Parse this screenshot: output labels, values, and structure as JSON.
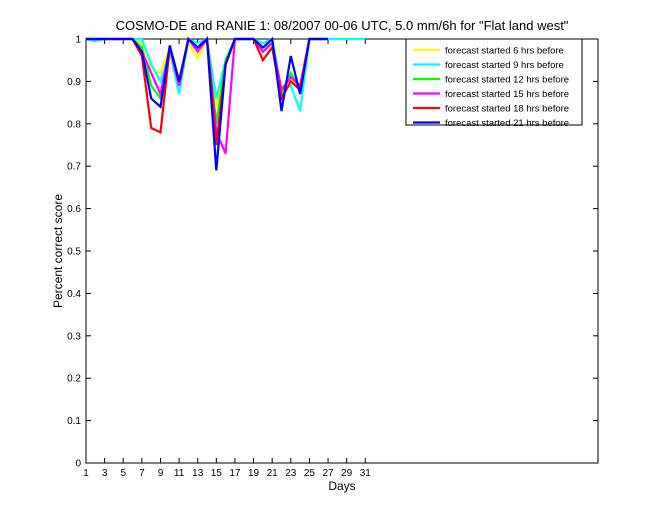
{
  "chart_data": {
    "type": "line",
    "title": "COSMO-DE and RANIE 1: 08/2007 00-06 UTC, 5.0 mm/6h for \"Flat land west\"",
    "xlabel": "Days",
    "ylabel": "Percent correct score",
    "xlim": [
      1,
      56
    ],
    "ylim": [
      0,
      1
    ],
    "xticks": [
      1,
      3,
      5,
      7,
      9,
      11,
      13,
      15,
      17,
      19,
      21,
      23,
      25,
      27,
      29,
      31
    ],
    "yticks": [
      0,
      0.1,
      0.2,
      0.3,
      0.4,
      0.5,
      0.6,
      0.7,
      0.8,
      0.9,
      1
    ],
    "ytick_labels": [
      "0",
      "0.1",
      "0.2",
      "0.3",
      "0.4",
      "0.5",
      "0.6",
      "0.7",
      "0.8",
      "0.9",
      "1"
    ],
    "legend_position": "top-right",
    "grid": false,
    "x": [
      1,
      2,
      3,
      4,
      5,
      6,
      7,
      8,
      9,
      10,
      11,
      12,
      13,
      14,
      15,
      16,
      17,
      18,
      19,
      20,
      21,
      22,
      23,
      24,
      25,
      26,
      27,
      28,
      29,
      30,
      31
    ],
    "series": [
      {
        "name": "forecast started 6 hrs before",
        "color": "#ffff00",
        "values": [
          1,
          1,
          1,
          1,
          1,
          1,
          0.99,
          0.93,
          0.92,
          0.98,
          0.91,
          0.99,
          0.955,
          1,
          0.84,
          0.94,
          1,
          1,
          1,
          0.98,
          0.99,
          0.87,
          0.91,
          0.88,
          1,
          1,
          1,
          null,
          null,
          null,
          null
        ]
      },
      {
        "name": "forecast started 9 hrs before",
        "color": "#00ffff",
        "values": [
          1,
          0.995,
          1,
          1,
          1,
          1,
          1,
          0.94,
          0.9,
          0.97,
          0.87,
          1,
          0.99,
          1,
          0.86,
          0.95,
          1,
          1,
          1,
          0.99,
          1,
          0.88,
          0.89,
          0.83,
          1,
          1,
          1,
          1,
          1,
          1,
          1
        ]
      },
      {
        "name": "forecast started 12 hrs before",
        "color": "#00ff00",
        "values": [
          1,
          1,
          1,
          1,
          1,
          1,
          0.98,
          0.89,
          0.86,
          0.98,
          0.89,
          1,
          0.98,
          1,
          0.8,
          0.95,
          1,
          1,
          1,
          0.98,
          0.99,
          0.87,
          0.92,
          0.88,
          1,
          1,
          1,
          null,
          null,
          null,
          null
        ]
      },
      {
        "name": "forecast started 15 hrs before",
        "color": "#ff00ff",
        "values": [
          1,
          1,
          1,
          1,
          1,
          1,
          0.97,
          0.92,
          0.87,
          0.98,
          0.89,
          1,
          0.97,
          1,
          0.78,
          0.73,
          1,
          1,
          1,
          0.97,
          0.99,
          0.88,
          0.91,
          0.89,
          1,
          1,
          1,
          null,
          null,
          null,
          null
        ]
      },
      {
        "name": "forecast started 18 hrs before",
        "color": "#ff0000",
        "values": [
          1,
          1,
          1,
          1,
          1,
          1,
          0.96,
          0.79,
          0.78,
          0.98,
          0.9,
          1,
          0.98,
          1,
          0.75,
          0.94,
          1,
          1,
          1,
          0.95,
          0.98,
          0.86,
          0.9,
          0.88,
          1,
          1,
          1,
          null,
          null,
          null,
          null
        ]
      },
      {
        "name": "forecast started 21 hrs before",
        "color": "#0000ff",
        "values": [
          1,
          1,
          1,
          1,
          1,
          1,
          0.97,
          0.86,
          0.84,
          0.985,
          0.9,
          1,
          0.98,
          1,
          0.69,
          0.94,
          1,
          1,
          1,
          0.98,
          1,
          0.83,
          0.96,
          0.87,
          1,
          1,
          1,
          null,
          null,
          null,
          null
        ]
      }
    ]
  }
}
